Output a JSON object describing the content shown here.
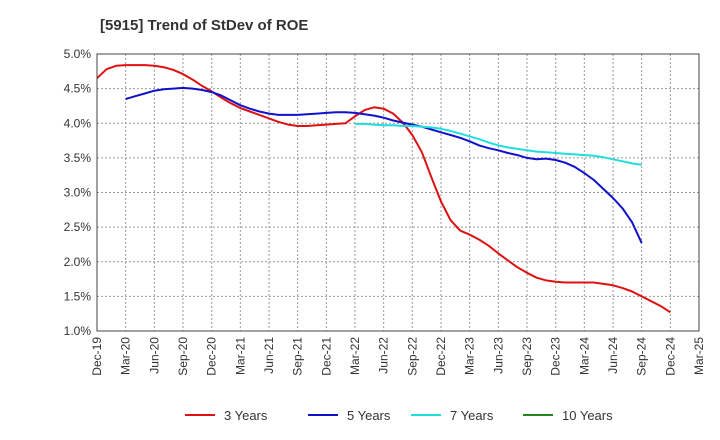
{
  "chart_data": {
    "type": "line",
    "title": "[5915]  Trend of StDev of ROE",
    "xlabel": "",
    "ylabel": "",
    "ylim": [
      1.0,
      5.0
    ],
    "yticks": [
      "5.0%",
      "4.5%",
      "4.0%",
      "3.5%",
      "3.0%",
      "2.5%",
      "2.0%",
      "1.5%",
      "1.0%"
    ],
    "ytick_values": [
      5.0,
      4.5,
      4.0,
      3.5,
      3.0,
      2.5,
      2.0,
      1.5,
      1.0
    ],
    "xticks": [
      "Dec-19",
      "Mar-20",
      "Jun-20",
      "Sep-20",
      "Dec-20",
      "Mar-21",
      "Jun-21",
      "Sep-21",
      "Dec-21",
      "Mar-22",
      "Jun-22",
      "Sep-22",
      "Dec-22",
      "Mar-23",
      "Jun-23",
      "Sep-23",
      "Dec-23",
      "Mar-24",
      "Jun-24",
      "Sep-24",
      "Dec-24",
      "Mar-25"
    ],
    "grid": true,
    "legend_position": "bottom",
    "series": [
      {
        "name": "3 Years",
        "color": "#dd1111",
        "start_index": 0,
        "values": [
          4.65,
          4.78,
          4.83,
          4.84,
          4.84,
          4.84,
          4.83,
          4.81,
          4.77,
          4.71,
          4.63,
          4.54,
          4.46,
          4.37,
          4.29,
          4.22,
          4.17,
          4.12,
          4.07,
          4.02,
          3.98,
          3.96,
          3.96,
          3.97,
          3.98,
          3.99,
          4.0,
          4.1,
          4.19,
          4.23,
          4.21,
          4.14,
          4.01,
          3.83,
          3.58,
          3.22,
          2.87,
          2.6,
          2.45,
          2.39,
          2.32,
          2.23,
          2.12,
          2.02,
          1.92,
          1.84,
          1.77,
          1.73,
          1.71,
          1.7,
          1.7,
          1.7,
          1.7,
          1.68,
          1.66,
          1.62,
          1.57,
          1.5,
          1.43,
          1.36,
          1.27
        ]
      },
      {
        "name": "5 Years",
        "color": "#1111cc",
        "start_index": 3,
        "values": [
          4.35,
          4.39,
          4.43,
          4.47,
          4.49,
          4.5,
          4.51,
          4.5,
          4.48,
          4.45,
          4.4,
          4.33,
          4.26,
          4.21,
          4.17,
          4.14,
          4.12,
          4.12,
          4.12,
          4.13,
          4.14,
          4.15,
          4.16,
          4.16,
          4.15,
          4.13,
          4.11,
          4.08,
          4.04,
          4.01,
          3.98,
          3.95,
          3.91,
          3.87,
          3.83,
          3.79,
          3.74,
          3.68,
          3.64,
          3.61,
          3.57,
          3.54,
          3.5,
          3.48,
          3.49,
          3.47,
          3.43,
          3.37,
          3.28,
          3.18,
          3.05,
          2.92,
          2.77,
          2.57,
          2.27
        ]
      },
      {
        "name": "7 Years",
        "color": "#22dddd",
        "start_index": 27,
        "values": [
          3.99,
          3.99,
          3.98,
          3.97,
          3.97,
          3.96,
          3.96,
          3.95,
          3.94,
          3.92,
          3.89,
          3.85,
          3.81,
          3.77,
          3.72,
          3.68,
          3.65,
          3.63,
          3.61,
          3.59,
          3.58,
          3.57,
          3.56,
          3.55,
          3.54,
          3.53,
          3.51,
          3.48,
          3.45,
          3.42,
          3.4
        ]
      },
      {
        "name": "10 Years",
        "color": "#228822",
        "start_index": 0,
        "values": []
      }
    ]
  }
}
